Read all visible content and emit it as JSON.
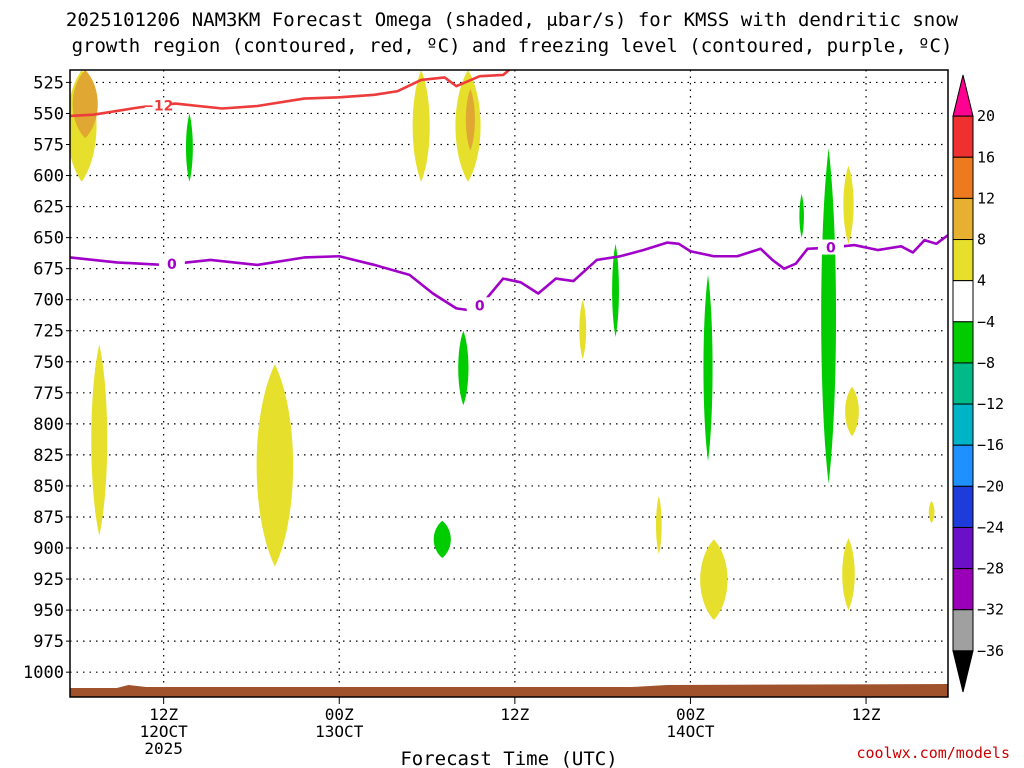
{
  "chart_data": {
    "type": "time-height cross section",
    "title_line1": "2025101206 NAM3KM Forecast Omega (shaded, μbar/s) for KMSS with dendritic snow",
    "title_line2": "growth region (contoured, red, ºC) and freezing level (contoured, purple, ºC)",
    "xlabel": "Forecast Time (UTC)",
    "credit": "coolwx.com/models",
    "credit_color": "#cc0000",
    "x_range_hours": [
      0,
      75
    ],
    "y_range_mb": [
      515,
      1020
    ],
    "y_ticks": [
      525,
      550,
      575,
      600,
      625,
      650,
      675,
      700,
      725,
      750,
      775,
      800,
      825,
      850,
      875,
      900,
      925,
      950,
      975,
      1000
    ],
    "x_ticks": [
      {
        "hour": 8,
        "label": "12Z",
        "sub1": "12OCT",
        "sub2": "2025"
      },
      {
        "hour": 23,
        "label": "00Z",
        "sub1": "13OCT",
        "sub2": ""
      },
      {
        "hour": 38,
        "label": "12Z",
        "sub1": "",
        "sub2": ""
      },
      {
        "hour": 53,
        "label": "00Z",
        "sub1": "14OCT",
        "sub2": ""
      },
      {
        "hour": 68,
        "label": "12Z",
        "sub1": "",
        "sub2": ""
      }
    ],
    "colorbar": {
      "labels": [
        "20",
        "16",
        "12",
        "8",
        "4",
        "−4",
        "−8",
        "−12",
        "−16",
        "−20",
        "−24",
        "−28",
        "−32",
        "−36"
      ],
      "colors": [
        "#ff0090",
        "#ee3030",
        "#ee7a20",
        "#e8b030",
        "#e6e02c",
        "#ffffff",
        "#00cc00",
        "#00bb88",
        "#00b4c8",
        "#1e90ff",
        "#1e3cdc",
        "#6a10c8",
        "#9a00b8",
        "#a0a0a0",
        "#000000"
      ]
    },
    "dgz_line": {
      "label": "−12",
      "color": "#ee3b3b",
      "points": [
        [
          0,
          552
        ],
        [
          2,
          551
        ],
        [
          6,
          545
        ],
        [
          9,
          542
        ],
        [
          13,
          546
        ],
        [
          16,
          544
        ],
        [
          20,
          538
        ],
        [
          23,
          537
        ],
        [
          26,
          535
        ],
        [
          28,
          532
        ],
        [
          30,
          523
        ],
        [
          32,
          521
        ],
        [
          33,
          528
        ],
        [
          35,
          520
        ],
        [
          37,
          519
        ],
        [
          38,
          511
        ]
      ]
    },
    "freezing_line": {
      "label": "0",
      "color": "#a000c8",
      "points": [
        [
          0,
          666
        ],
        [
          4,
          670
        ],
        [
          8,
          672
        ],
        [
          12,
          668
        ],
        [
          16,
          672
        ],
        [
          20,
          666
        ],
        [
          23,
          665
        ],
        [
          26,
          672
        ],
        [
          29,
          680
        ],
        [
          31,
          695
        ],
        [
          33,
          707
        ],
        [
          34.5,
          709
        ],
        [
          35.5,
          700
        ],
        [
          37,
          683
        ],
        [
          38.5,
          686
        ],
        [
          40,
          695
        ],
        [
          41.5,
          683
        ],
        [
          43,
          685
        ],
        [
          45,
          668
        ],
        [
          47,
          665
        ],
        [
          49,
          660
        ],
        [
          51,
          654
        ],
        [
          52,
          655
        ],
        [
          53,
          661
        ],
        [
          55,
          665
        ],
        [
          57,
          665
        ],
        [
          59,
          659
        ],
        [
          60,
          668
        ],
        [
          61,
          675
        ],
        [
          62,
          671
        ],
        [
          63,
          659
        ],
        [
          65,
          658
        ],
        [
          67,
          656
        ],
        [
          69,
          660
        ],
        [
          71,
          657
        ],
        [
          72,
          662
        ],
        [
          73,
          652
        ],
        [
          74,
          655
        ],
        [
          75,
          648
        ]
      ]
    },
    "omega_positive_4to8": [
      {
        "hour": 1,
        "p_top": 515,
        "p_bot": 605,
        "w": 2.6
      },
      {
        "hour": 2.5,
        "p_top": 736,
        "p_bot": 890,
        "w": 1.4
      },
      {
        "hour": 17.5,
        "p_top": 752,
        "p_bot": 915,
        "w": 3.2
      },
      {
        "hour": 30,
        "p_top": 515,
        "p_bot": 605,
        "w": 1.5
      },
      {
        "hour": 34,
        "p_top": 515,
        "p_bot": 605,
        "w": 2.2
      },
      {
        "hour": 43.8,
        "p_top": 700,
        "p_bot": 748,
        "w": 0.6
      },
      {
        "hour": 50.3,
        "p_top": 858,
        "p_bot": 905,
        "w": 0.5
      },
      {
        "hour": 55,
        "p_top": 893,
        "p_bot": 958,
        "w": 2.4
      },
      {
        "hour": 66.5,
        "p_top": 592,
        "p_bot": 655,
        "w": 0.9
      },
      {
        "hour": 66.8,
        "p_top": 770,
        "p_bot": 810,
        "w": 1.2
      },
      {
        "hour": 66.5,
        "p_top": 892,
        "p_bot": 950,
        "w": 1.1
      },
      {
        "hour": 73.6,
        "p_top": 862,
        "p_bot": 880,
        "w": 0.5
      }
    ],
    "omega_positive_8to12": [
      {
        "hour": 1.3,
        "p_top": 515,
        "p_bot": 570,
        "w": 2.2
      },
      {
        "hour": 34.2,
        "p_top": 530,
        "p_bot": 580,
        "w": 0.8
      }
    ],
    "omega_negative_minus4to8": [
      {
        "hour": 10.2,
        "p_top": 550,
        "p_bot": 605,
        "w": 0.6
      },
      {
        "hour": 33.6,
        "p_top": 725,
        "p_bot": 785,
        "w": 0.9
      },
      {
        "hour": 31.8,
        "p_top": 878,
        "p_bot": 908,
        "w": 1.5
      },
      {
        "hour": 46.6,
        "p_top": 655,
        "p_bot": 730,
        "w": 0.6
      },
      {
        "hour": 54.5,
        "p_top": 680,
        "p_bot": 830,
        "w": 0.8
      },
      {
        "hour": 62.5,
        "p_top": 615,
        "p_bot": 650,
        "w": 0.4
      },
      {
        "hour": 64.8,
        "p_top": 578,
        "p_bot": 848,
        "w": 1.3
      }
    ],
    "terrain_color": "#a0522d"
  }
}
